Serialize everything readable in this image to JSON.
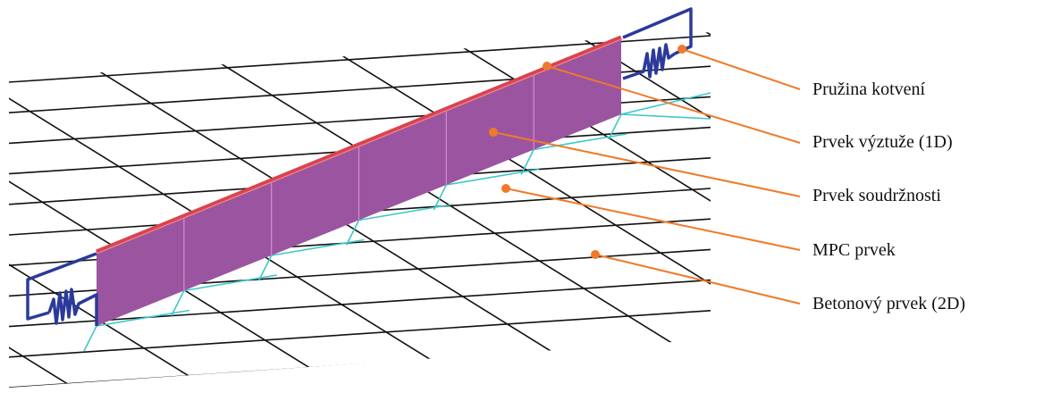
{
  "labels": [
    "Pružina kotvení",
    "Prvek výztuže (1D)",
    "Prvek soudržnosti",
    "MPC prvek",
    "Betonový prvek (2D)"
  ],
  "colors": {
    "grid": "#111111",
    "bond_element": "#9b55a0",
    "reinforcement": "#d94350",
    "spring": "#2b3a9a",
    "mpc": "#3cc8c8",
    "leader": "#f07a2a"
  }
}
